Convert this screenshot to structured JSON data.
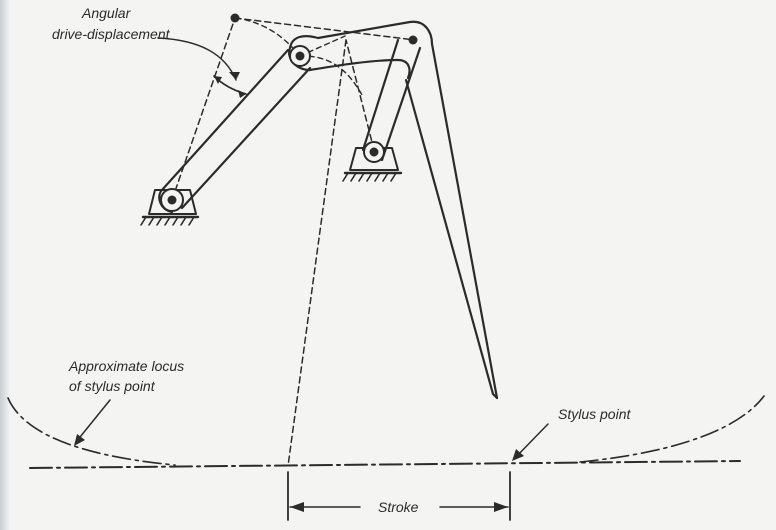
{
  "labels": {
    "angular_line1": "Angular",
    "angular_line2": "drive-displacement",
    "locus_line1": "Approximate locus",
    "locus_line2": "of stylus point",
    "stylus_point": "Stylus point",
    "stroke": "Stroke"
  },
  "colors": {
    "ink": "#2b2b2b",
    "paper": "#f4f4f2"
  }
}
